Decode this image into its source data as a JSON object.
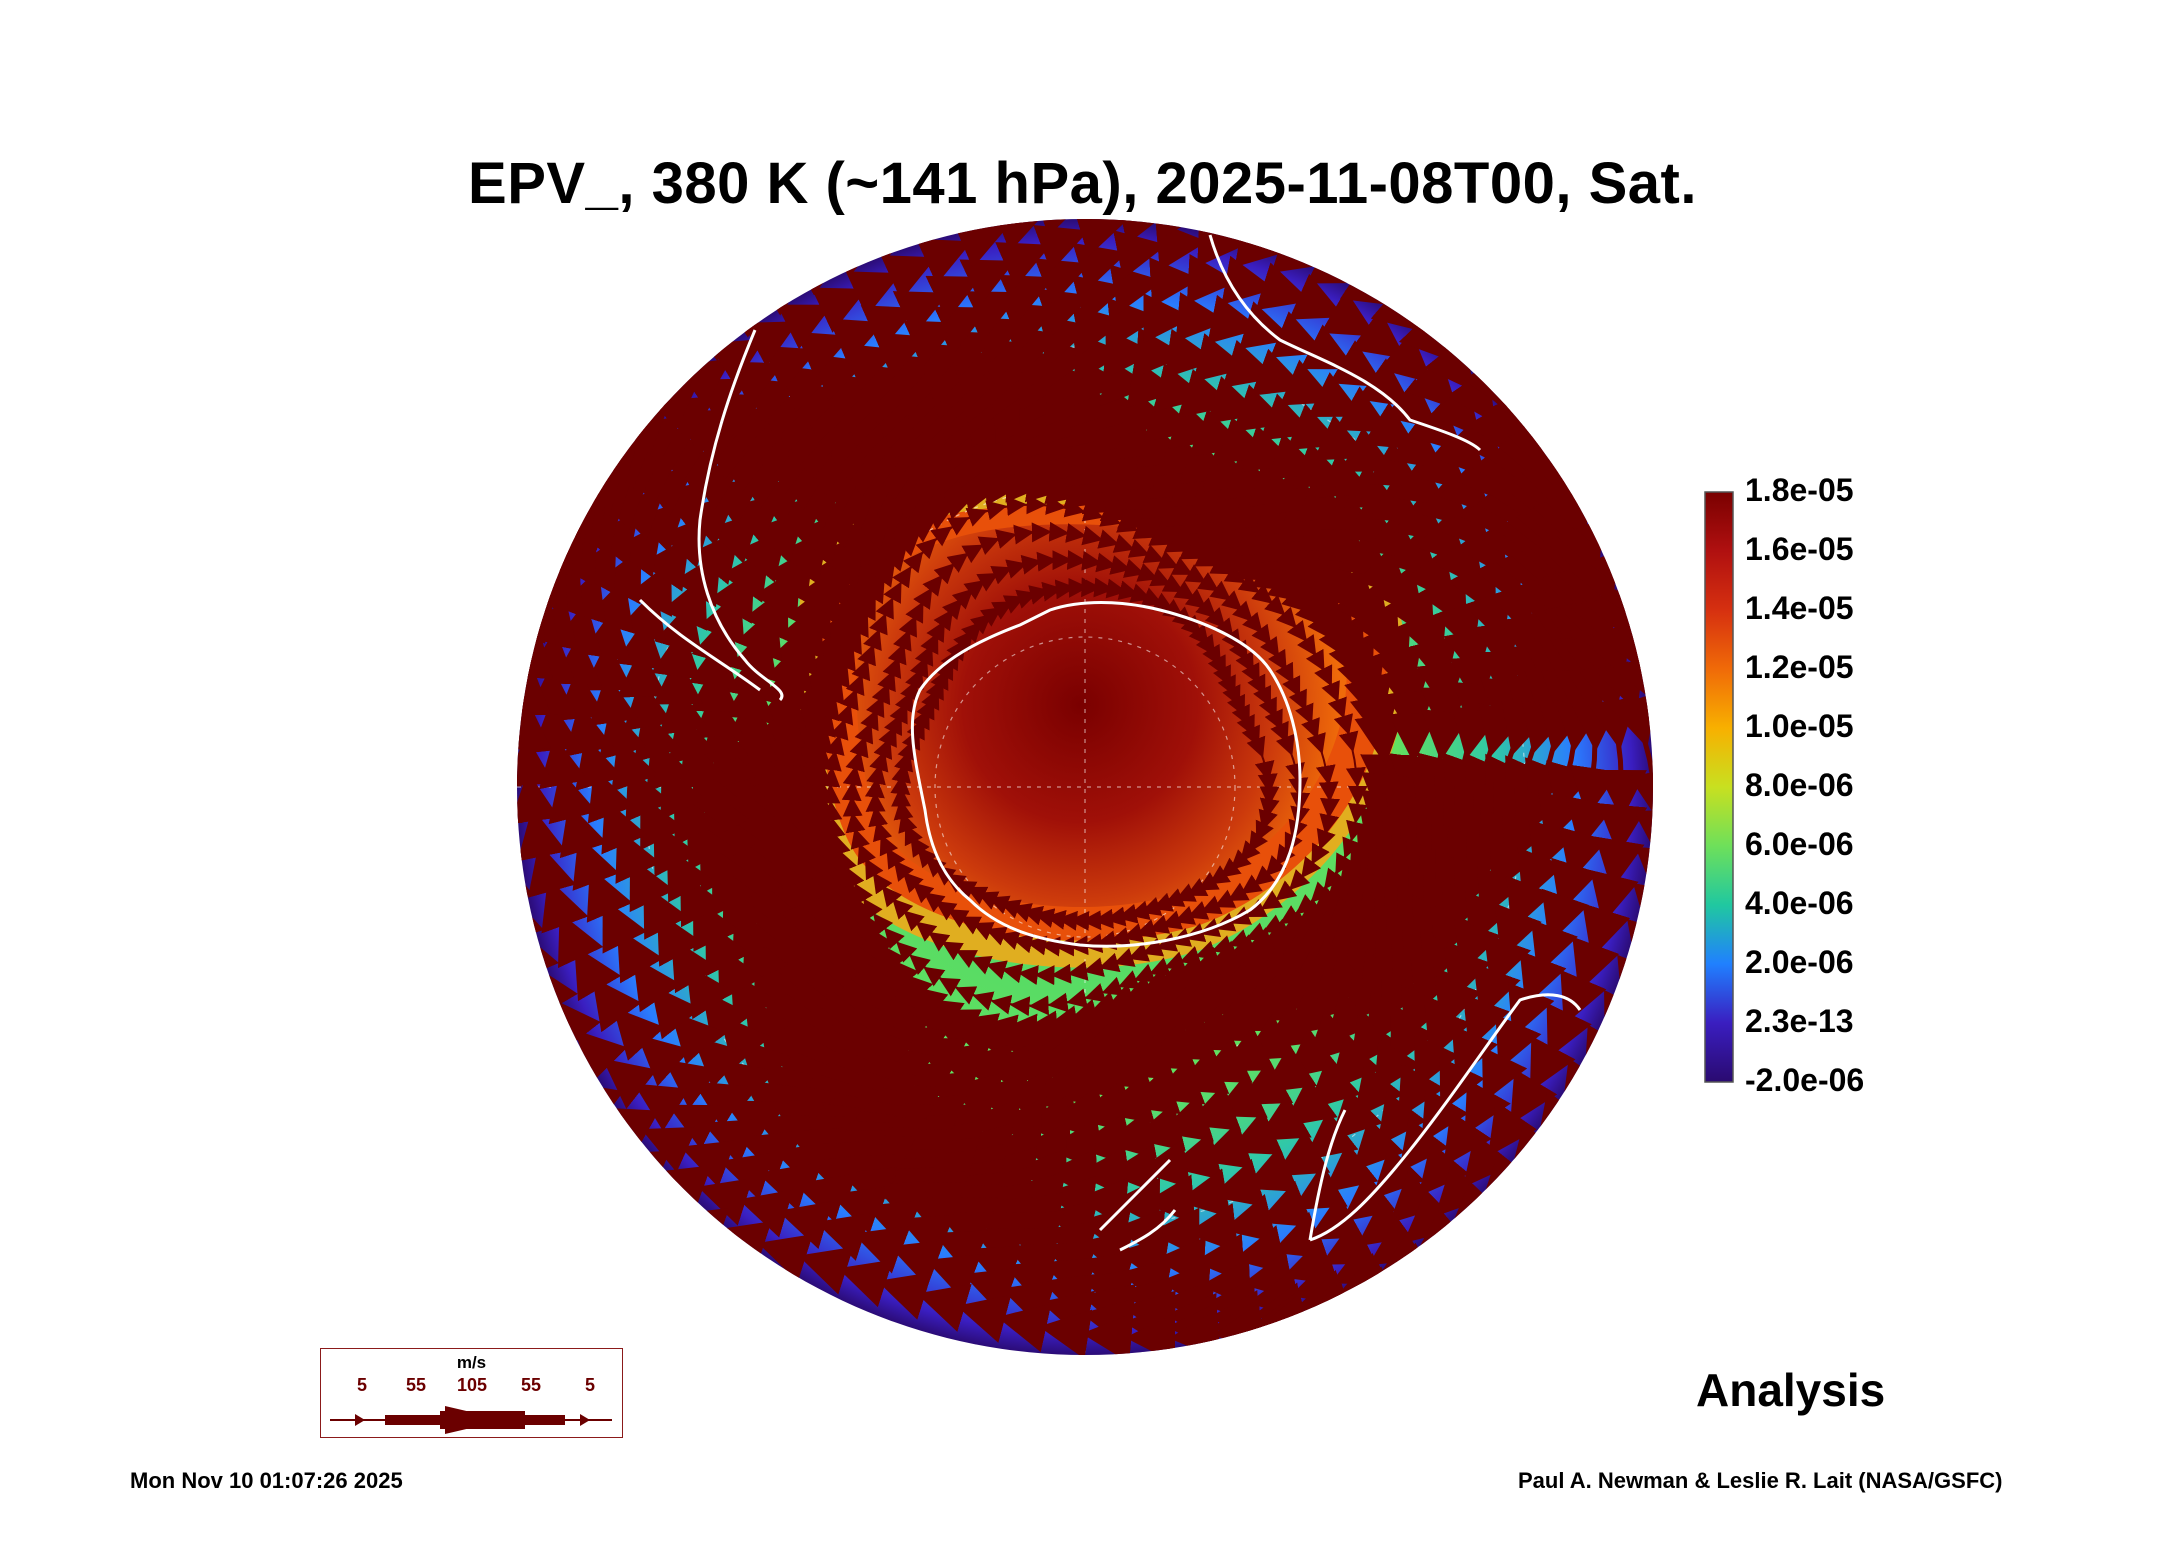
{
  "title": "EPV_, 380 K (~141 hPa), 2025-11-08T00, Sat.",
  "colorbar": {
    "labels": [
      "1.8e-05",
      "1.6e-05",
      "1.4e-05",
      "1.2e-05",
      "1.0e-05",
      "8.0e-06",
      "6.0e-06",
      "4.0e-06",
      "2.0e-06",
      "2.3e-13",
      "-2.0e-06"
    ],
    "colors": [
      "#7a0000",
      "#b01010",
      "#d63010",
      "#f06a08",
      "#f8b000",
      "#c8e020",
      "#6ee05a",
      "#20c8a0",
      "#2080ff",
      "#3a1ec0",
      "#2a0a70"
    ]
  },
  "wind_key": {
    "unit": "m/s",
    "labels": [
      "5",
      "55",
      "105",
      "55",
      "5"
    ]
  },
  "stamp": "Analysis",
  "footer": {
    "timestamp": "Mon Nov 10 01:07:26 2025",
    "credit": "Paul A. Newman & Leslie R. Lait (NASA/GSFC)"
  },
  "map": {
    "projection": "south-polar-orthographic",
    "field": "EPV",
    "colors": {
      "streamline": "#6b0000",
      "coastline": "#ffffff",
      "vortex_core": "#8a0808",
      "vortex_edge": "#e8500a",
      "midlatitude": "#6ee05a",
      "outer": "#2a6cff",
      "rim": "#3a1ec0"
    }
  }
}
